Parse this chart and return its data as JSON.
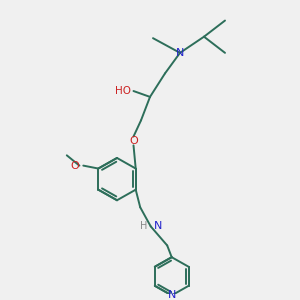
{
  "bg_color": "#f0f0f0",
  "bond_color": "#2d6e5a",
  "N_color": "#2222cc",
  "O_color": "#cc2222",
  "C_color": "#000000",
  "H_color": "#888888",
  "figsize": [
    3.0,
    3.0
  ],
  "dpi": 100,
  "xlim": [
    0,
    10
  ],
  "ylim": [
    0,
    10
  ]
}
